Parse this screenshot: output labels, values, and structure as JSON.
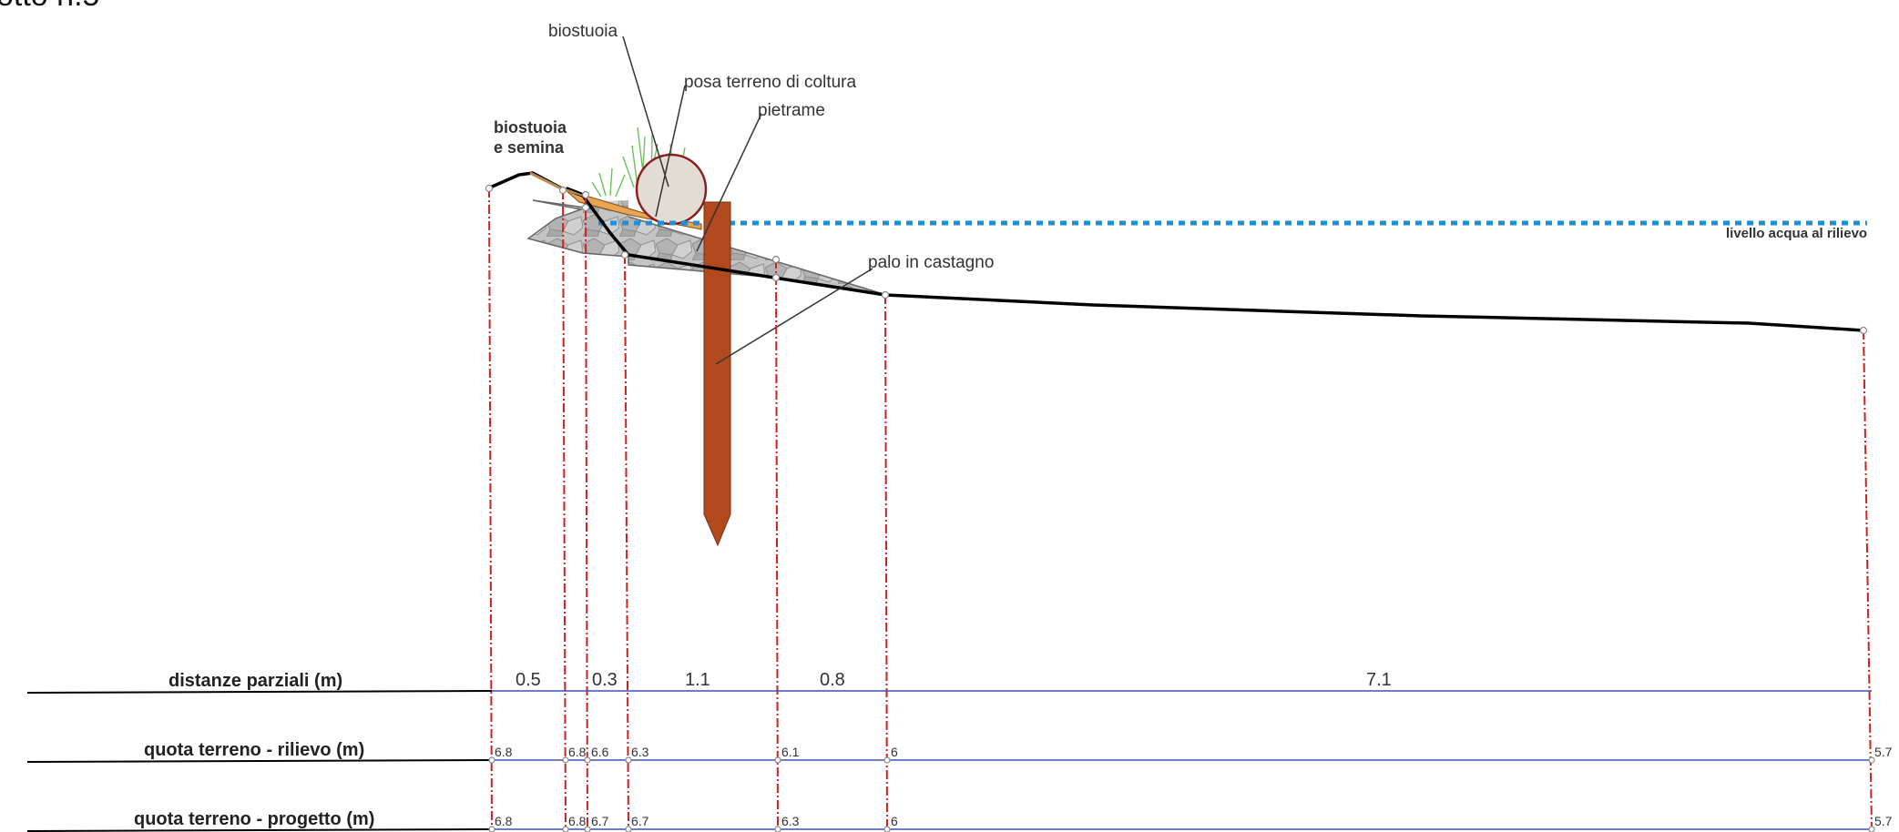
{
  "title_fragment": "otto n.5",
  "annotations": {
    "biostuoia": "biostuoia",
    "posa_terreno": "posa terreno di coltura",
    "pietrame": "pietrame",
    "biostuoia_semina_1": "biostuoia",
    "biostuoia_semina_2": "e semina",
    "palo": "palo in castagno",
    "livello_acqua": "livello acqua al rilievo"
  },
  "table": {
    "rows": {
      "distanze": "distanze parziali (m)",
      "rilievo": "quota terreno - rilievo (m)",
      "progetto": "quota terreno - progetto (m)"
    },
    "distanze": [
      "0.5",
      "0.3",
      "1.1",
      "0.8",
      "7.1"
    ],
    "rilievo": [
      "6.8",
      "6.8",
      "6.6",
      "6.3",
      "6.1",
      "6",
      "5.7"
    ],
    "progetto": [
      "6.8",
      "6.8",
      "6.7",
      "6.7",
      "6.3",
      "6",
      "5.7"
    ]
  },
  "colors": {
    "stake": "#b34a1e",
    "water": "#1e90d6",
    "guide": "#cc2222",
    "row_line": "#3f51b5",
    "stone": "#b9b9b9"
  }
}
